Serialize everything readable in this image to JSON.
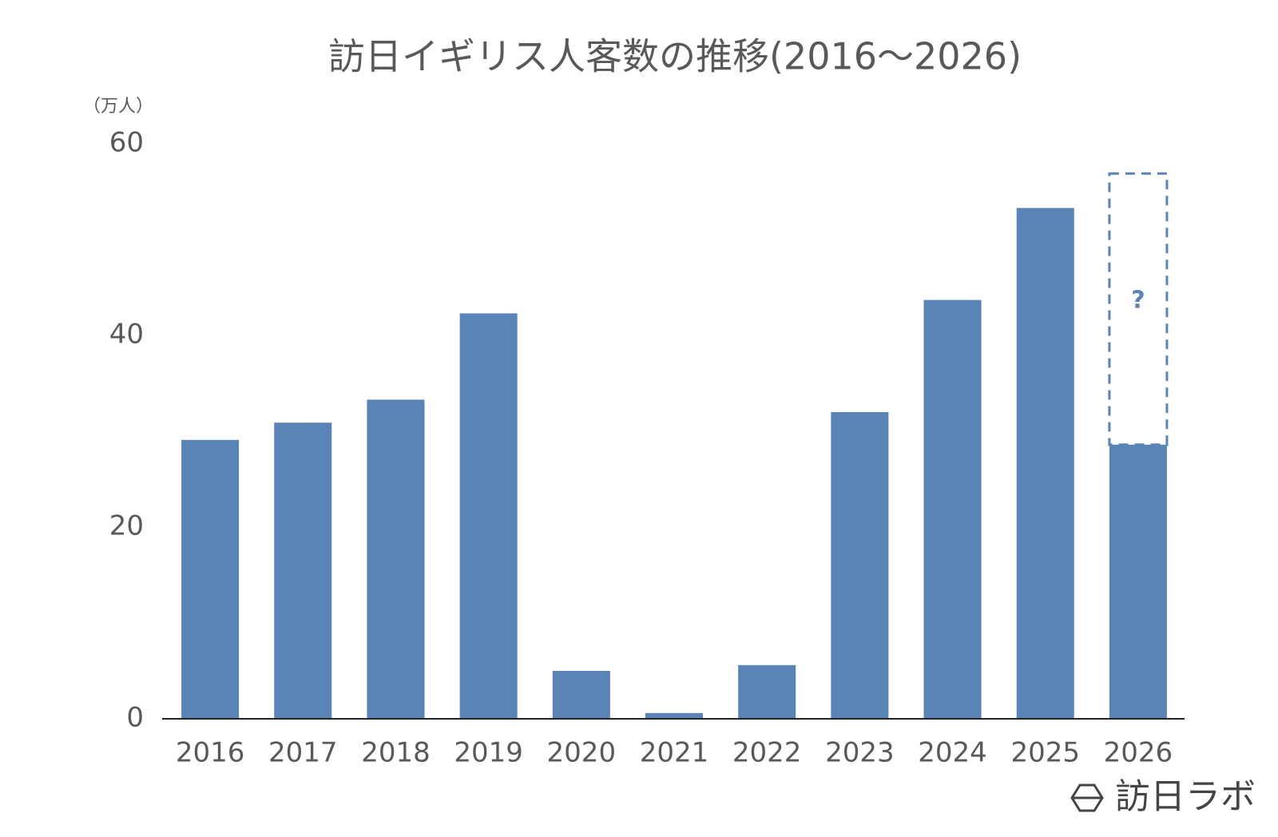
{
  "chart_data": {
    "type": "bar",
    "title": "訪日イギリス人客数の推移(2016～2026)",
    "y_unit": "（万人）",
    "categories": [
      "2016",
      "2017",
      "2018",
      "2019",
      "2020",
      "2021",
      "2022",
      "2023",
      "2024",
      "2025",
      "2026"
    ],
    "series": [
      {
        "color": "#5b84b6",
        "values": [
          29.1,
          30.9,
          33.3,
          42.3,
          5.0,
          0.6,
          5.6,
          32.0,
          43.7,
          53.3,
          28.6
        ]
      },
      {
        "color": "#5b84b6",
        "style": "dashed",
        "label": "?",
        "values": [
          null,
          null,
          null,
          null,
          null,
          null,
          null,
          null,
          null,
          null,
          28.3
        ]
      }
    ],
    "stacked": true,
    "ylim": [
      0,
      60
    ],
    "yticks": [
      0,
      20,
      40,
      60
    ],
    "grid": false
  },
  "logo": "訪日ラボ"
}
